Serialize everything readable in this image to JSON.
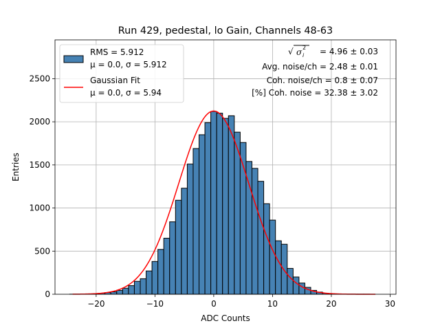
{
  "chart_data": {
    "type": "bar",
    "title": "Run 429, pedestal, lo Gain, Channels 48-63",
    "xlabel": "ADC Counts",
    "ylabel": "Entries",
    "xlim": [
      -27,
      31
    ],
    "ylim": [
      0,
      2950
    ],
    "xticks": [
      -20,
      -10,
      0,
      10,
      20,
      30
    ],
    "yticks": [
      0,
      500,
      1000,
      1500,
      2000,
      2500
    ],
    "grid": true,
    "bin_width": 1,
    "bins": [
      {
        "x": -24,
        "y": 1
      },
      {
        "x": -23,
        "y": 1
      },
      {
        "x": -22,
        "y": 2
      },
      {
        "x": -21,
        "y": 4
      },
      {
        "x": -20,
        "y": 6
      },
      {
        "x": -19,
        "y": 12
      },
      {
        "x": -18,
        "y": 20
      },
      {
        "x": -17,
        "y": 28
      },
      {
        "x": -16,
        "y": 45
      },
      {
        "x": -15,
        "y": 70
      },
      {
        "x": -14,
        "y": 100
      },
      {
        "x": -13,
        "y": 150
      },
      {
        "x": -12,
        "y": 180
      },
      {
        "x": -11,
        "y": 270
      },
      {
        "x": -10,
        "y": 380
      },
      {
        "x": -9,
        "y": 520
      },
      {
        "x": -8,
        "y": 650
      },
      {
        "x": -7,
        "y": 840
      },
      {
        "x": -6,
        "y": 1090
      },
      {
        "x": -5,
        "y": 1230
      },
      {
        "x": -4,
        "y": 1510
      },
      {
        "x": -3,
        "y": 1690
      },
      {
        "x": -2,
        "y": 1850
      },
      {
        "x": -1,
        "y": 1990
      },
      {
        "x": 0,
        "y": 2120
      },
      {
        "x": 1,
        "y": 2100
      },
      {
        "x": 2,
        "y": 2040
      },
      {
        "x": 3,
        "y": 2070
      },
      {
        "x": 4,
        "y": 1880
      },
      {
        "x": 5,
        "y": 1760
      },
      {
        "x": 6,
        "y": 1540
      },
      {
        "x": 7,
        "y": 1460
      },
      {
        "x": 8,
        "y": 1310
      },
      {
        "x": 9,
        "y": 1050
      },
      {
        "x": 10,
        "y": 860
      },
      {
        "x": 11,
        "y": 620
      },
      {
        "x": 12,
        "y": 580
      },
      {
        "x": 13,
        "y": 300
      },
      {
        "x": 14,
        "y": 200
      },
      {
        "x": 15,
        "y": 130
      },
      {
        "x": 16,
        "y": 80
      },
      {
        "x": 17,
        "y": 45
      },
      {
        "x": 18,
        "y": 25
      },
      {
        "x": 19,
        "y": 12
      },
      {
        "x": 20,
        "y": 6
      },
      {
        "x": 21,
        "y": 3
      },
      {
        "x": 22,
        "y": 2
      },
      {
        "x": 23,
        "y": 1
      },
      {
        "x": 24,
        "y": 1
      },
      {
        "x": 25,
        "y": 1
      },
      {
        "x": 26,
        "y": 1
      }
    ],
    "gaussian_fit": {
      "name": "Gaussian Fit",
      "mu": 0.0,
      "sigma": 5.94,
      "amplitude": 2125,
      "x_range": [
        -24,
        27.5
      ]
    },
    "legend": {
      "placement": "top-left",
      "entries": [
        {
          "lines": [
            "RMS = 5.912",
            "μ = 0.0, σ = 5.912"
          ],
          "kind": "patch"
        },
        {
          "lines": [
            "Gaussian Fit",
            "μ = 0.0, σ = 5.94"
          ],
          "kind": "line"
        }
      ]
    },
    "stats": {
      "placement": "top-right",
      "sigma_total": "= 4.96 ± 0.03",
      "avg_noise": "Avg. noise/ch = 2.48 ± 0.01",
      "coh_noise": "Coh. noise/ch = 0.8 ± 0.07",
      "pct_coh_noise": "[%] Coh. noise = 32.38 ± 3.02"
    },
    "colors": {
      "bar_fill": "#4682b4",
      "bar_edge": "#000000",
      "fit_line": "#ff0000"
    }
  }
}
